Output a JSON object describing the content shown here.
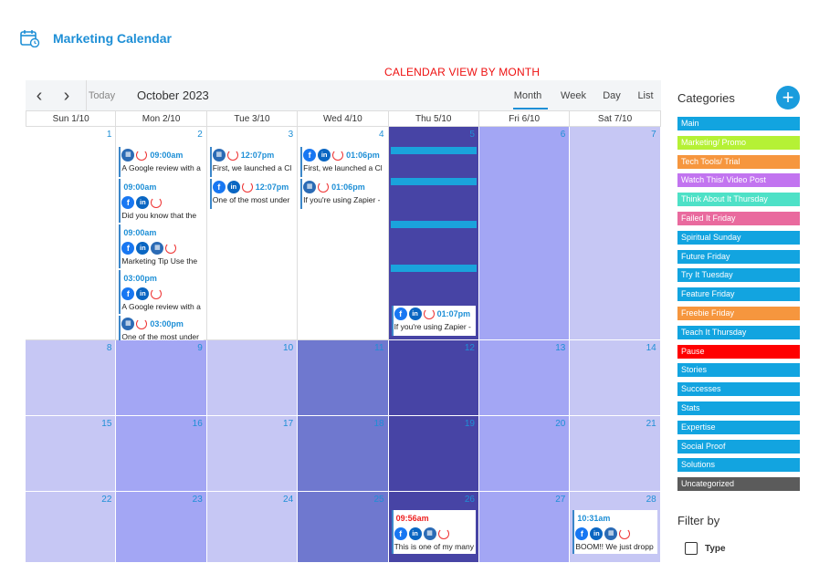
{
  "header": {
    "title": "Marketing Calendar",
    "icon": "calendar-clock-icon"
  },
  "annotation": {
    "label": "CALENDAR VIEW BY MONTH",
    "color": "#e11111"
  },
  "toolbar": {
    "prev_icon": "chevron-left-icon",
    "next_icon": "chevron-right-icon",
    "prev_glyph": "‹",
    "next_glyph": "›",
    "today": "Today",
    "title": "October 2023",
    "views": {
      "month": "Month",
      "week": "Week",
      "day": "Day",
      "list": "List"
    },
    "active_view": "Month"
  },
  "days_of_week": [
    "Sun 1/10",
    "Mon 2/10",
    "Tue 3/10",
    "Wed 4/10",
    "Thu 5/10",
    "Fri 6/10",
    "Sat 7/10"
  ],
  "weeks": [
    {
      "cells": [
        {
          "num": "1",
          "tone": "white"
        },
        {
          "num": "2",
          "tone": "white",
          "events": [
            {
              "icons": [
                "buzz",
                "refresh"
              ],
              "time": "09:00am",
              "text": "A Google review with a"
            },
            {
              "icons": [],
              "time": "09:00am",
              "icons2": [
                "fb",
                "li",
                "refresh"
              ],
              "text": "Did you know that the"
            },
            {
              "icons": [],
              "time": "09:00am",
              "icons2": [
                "fb",
                "li",
                "buzz",
                "refresh"
              ],
              "text": "Marketing Tip Use the"
            },
            {
              "icons": [],
              "time": "03:00pm",
              "icons2": [
                "fb",
                "li",
                "refresh"
              ],
              "text": "A Google review with a"
            },
            {
              "icons": [
                "buzz",
                "refresh"
              ],
              "time": "03:00pm",
              "text": "One of the most under"
            }
          ]
        },
        {
          "num": "3",
          "tone": "white",
          "events": [
            {
              "icons": [
                "buzz",
                "refresh"
              ],
              "time": "12:07pm",
              "text": "First, we launched a Cl"
            },
            {
              "icons": [
                "fb",
                "li",
                "refresh"
              ],
              "time": "12:07pm",
              "text": "One of the most under"
            }
          ]
        },
        {
          "num": "4",
          "tone": "white",
          "events": [
            {
              "icons": [
                "fb",
                "li",
                "refresh"
              ],
              "time": "01:06pm",
              "text": "First, we launched a Cl"
            },
            {
              "icons": [
                "buzz",
                "refresh"
              ],
              "time": "01:06pm",
              "text": "If you're using Zapier -"
            }
          ]
        },
        {
          "num": "5",
          "tone": "dark",
          "bars": 4,
          "events": [
            {
              "icons": [
                "fb",
                "li",
                "refresh"
              ],
              "time": "01:07pm",
              "text": "If you're using Zapier -"
            }
          ]
        },
        {
          "num": "6",
          "tone": "mid"
        },
        {
          "num": "7",
          "tone": "light"
        }
      ]
    },
    {
      "cells": [
        {
          "num": "8",
          "tone": "light"
        },
        {
          "num": "9",
          "tone": "mid"
        },
        {
          "num": "10",
          "tone": "light"
        },
        {
          "num": "11",
          "tone": "steel"
        },
        {
          "num": "12",
          "tone": "dark"
        },
        {
          "num": "13",
          "tone": "mid"
        },
        {
          "num": "14",
          "tone": "light"
        }
      ]
    },
    {
      "cells": [
        {
          "num": "15",
          "tone": "light"
        },
        {
          "num": "16",
          "tone": "mid"
        },
        {
          "num": "17",
          "tone": "light"
        },
        {
          "num": "18",
          "tone": "steel"
        },
        {
          "num": "19",
          "tone": "dark"
        },
        {
          "num": "20",
          "tone": "mid"
        },
        {
          "num": "21",
          "tone": "light"
        }
      ]
    },
    {
      "cells": [
        {
          "num": "22",
          "tone": "light"
        },
        {
          "num": "23",
          "tone": "mid"
        },
        {
          "num": "24",
          "tone": "light"
        },
        {
          "num": "25",
          "tone": "steel"
        },
        {
          "num": "26",
          "tone": "dark",
          "events": [
            {
              "time": "09:56am",
              "time_color": "red",
              "icons2": [
                "fb",
                "li",
                "buzz",
                "refresh"
              ],
              "text": "This is one of my many"
            }
          ]
        },
        {
          "num": "27",
          "tone": "mid"
        },
        {
          "num": "28",
          "tone": "light",
          "events": [
            {
              "time": "10:31am",
              "icons2": [
                "fb",
                "li",
                "buzz",
                "refresh"
              ],
              "text": "BOOM!! We just dropp"
            }
          ]
        }
      ]
    }
  ],
  "sidebar": {
    "title": "Categories",
    "add_icon": "plus-icon",
    "add_glyph": "+",
    "categories": [
      {
        "label": "Main",
        "color": "#12a4e0"
      },
      {
        "label": "Marketing/ Promo",
        "color": "#b5f135"
      },
      {
        "label": "Tech Tools/ Trial",
        "color": "#f6963e"
      },
      {
        "label": "Watch This/ Video Post",
        "color": "#c274f0"
      },
      {
        "label": "Think About It Thursday",
        "color": "#4ee1c7"
      },
      {
        "label": "Failed It Friday",
        "color": "#e96a9e"
      },
      {
        "label": "Spiritual Sunday",
        "color": "#12a4e0"
      },
      {
        "label": "Future Friday",
        "color": "#12a4e0"
      },
      {
        "label": "Try It Tuesday",
        "color": "#12a4e0"
      },
      {
        "label": "Feature Friday",
        "color": "#12a4e0"
      },
      {
        "label": "Freebie Friday",
        "color": "#f6963e"
      },
      {
        "label": "Teach It Thursday",
        "color": "#12a4e0"
      },
      {
        "label": "Pause",
        "color": "#ff0000"
      },
      {
        "label": "Stories",
        "color": "#12a4e0"
      },
      {
        "label": "Successes",
        "color": "#12a4e0"
      },
      {
        "label": "Stats",
        "color": "#12a4e0"
      },
      {
        "label": "Expertise",
        "color": "#12a4e0"
      },
      {
        "label": "Social Proof",
        "color": "#12a4e0"
      },
      {
        "label": "Solutions",
        "color": "#12a4e0"
      },
      {
        "label": "Uncategorized",
        "color": "#5b5b5b"
      }
    ],
    "filter_title": "Filter by",
    "filter_option": "Type"
  }
}
